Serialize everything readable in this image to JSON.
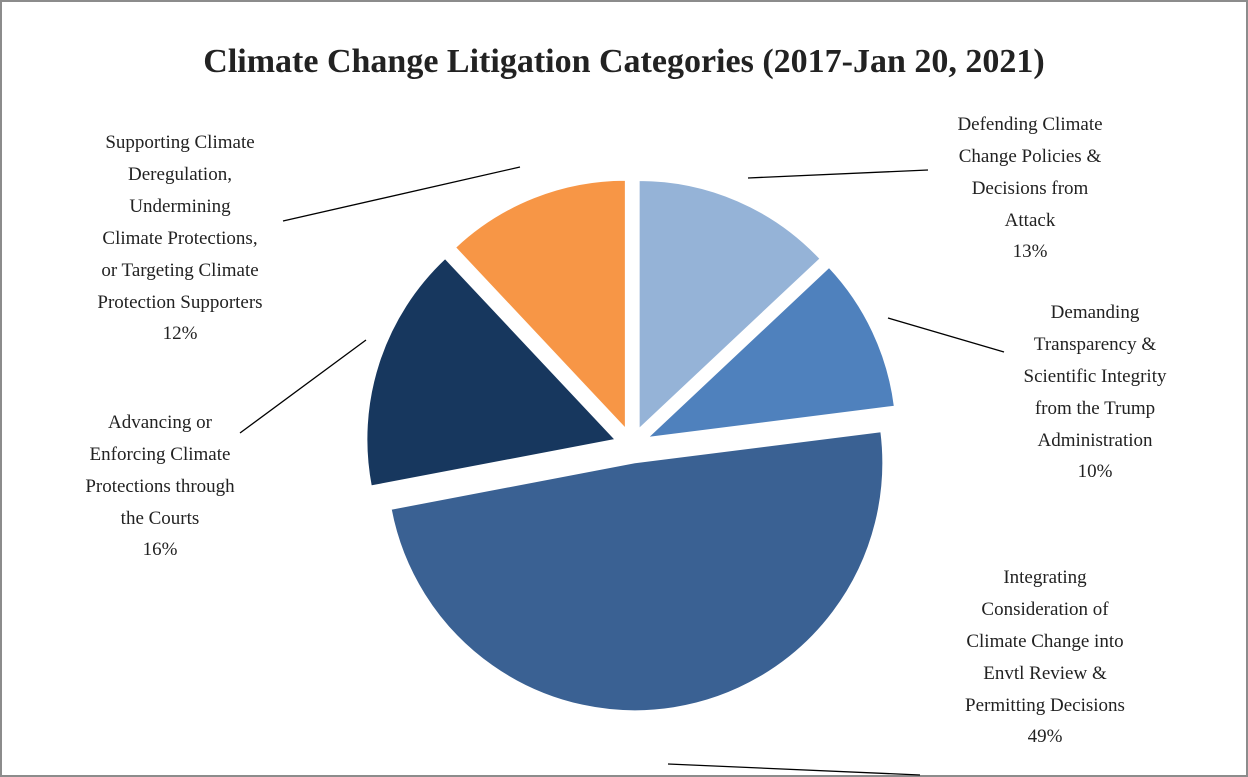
{
  "chart_data": {
    "type": "pie",
    "title": "Climate Change Litigation Categories (2017-Jan 20, 2021)",
    "categories": [
      "Defending Climate\nChange Policies  &\nDecisions from\nAttack",
      "Demanding\nTransparency &\nScientific Integrity\nfrom the Trump\nAdministration",
      "Integrating\nConsideration of\nClimate Change into\nEnvtl Review &\nPermitting Decisions",
      "Advancing or\nEnforcing Climate\nProtections through\nthe Courts",
      "Supporting Climate\nDeregulation,\nUndermining\nClimate Protections,\nor Targeting Climate\nProtection Supporters"
    ],
    "values": [
      13,
      10,
      49,
      16,
      12
    ],
    "value_labels": [
      "13%",
      "10%",
      "49%",
      "16%",
      "12%"
    ],
    "colors": [
      "#95b3d7",
      "#4f81bd",
      "#3a6193",
      "#17375e",
      "#f79646"
    ]
  }
}
